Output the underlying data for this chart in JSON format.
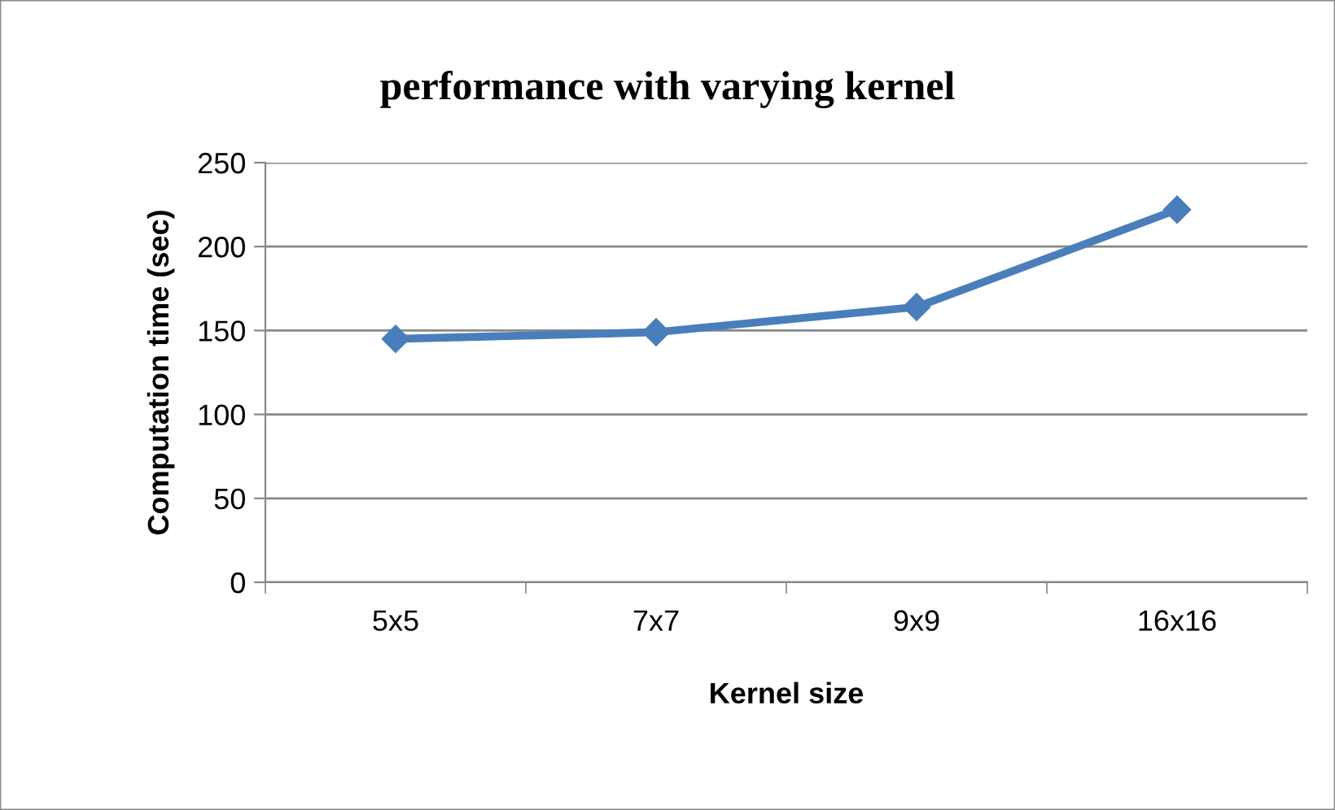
{
  "chart_data": {
    "type": "line",
    "title": "performance with varying kernel",
    "xlabel": "Kernel size",
    "ylabel": "Computation time (sec)",
    "categories": [
      "5x5",
      "7x7",
      "9x9",
      "16x16"
    ],
    "series": [
      {
        "color": "#4a7ebb",
        "values": [
          145,
          149,
          164,
          222
        ]
      }
    ],
    "ylim": [
      0,
      250
    ],
    "yticks": [
      0,
      50,
      100,
      150,
      200,
      250
    ],
    "grid": "y",
    "marker": "diamond",
    "line_style": "solid",
    "legend": false
  }
}
